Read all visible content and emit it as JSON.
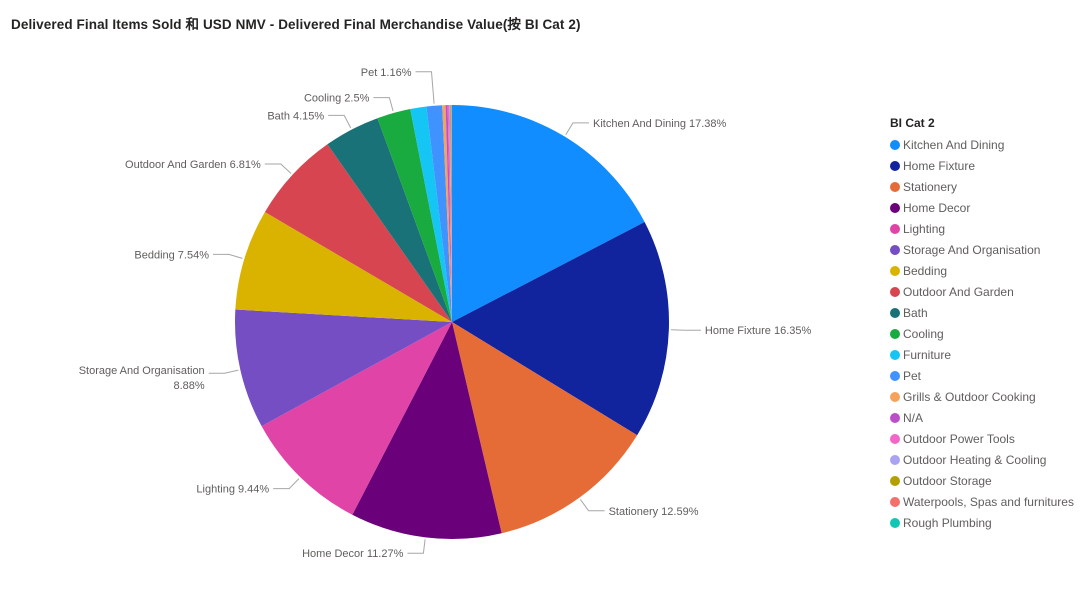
{
  "title": "Delivered Final Items Sold 和 USD NMV - Delivered Final Merchandise Value(按 BI Cat 2)",
  "colors": {
    "background": "#FFFFFF",
    "title_text": "#252423",
    "label_text": "#605E5C",
    "leader_line": "#A6A6A6",
    "legend_title_text": "#252423",
    "legend_item_text": "#605E5C"
  },
  "chart_data": {
    "type": "pie",
    "title": "Delivered Final Items Sold 和 USD NMV - Delivered Final Merchandise Value(按 BI Cat 2)",
    "legend_title": "BI Cat 2",
    "legend_position": "right",
    "label_format": "name percent",
    "start_angle_deg": 0,
    "direction": "clockwise",
    "slices": [
      {
        "name": "Kitchen And Dining",
        "value": 17.38,
        "pct_label": "17.38%",
        "color": "#118DFF"
      },
      {
        "name": "Home Fixture",
        "value": 16.35,
        "pct_label": "16.35%",
        "color": "#12239E"
      },
      {
        "name": "Stationery",
        "value": 12.59,
        "pct_label": "12.59%",
        "color": "#E66C37"
      },
      {
        "name": "Home Decor",
        "value": 11.27,
        "pct_label": "11.27%",
        "color": "#6B007B"
      },
      {
        "name": "Lighting",
        "value": 9.44,
        "pct_label": "9.44%",
        "color": "#E044A7"
      },
      {
        "name": "Storage And Organisation",
        "value": 8.88,
        "pct_label": "8.88%",
        "color": "#744EC2"
      },
      {
        "name": "Bedding",
        "value": 7.54,
        "pct_label": "7.54%",
        "color": "#D9B300"
      },
      {
        "name": "Outdoor And Garden",
        "value": 6.81,
        "pct_label": "6.81%",
        "color": "#D64550"
      },
      {
        "name": "Bath",
        "value": 4.15,
        "pct_label": "4.15%",
        "color": "#197278"
      },
      {
        "name": "Cooling",
        "value": 2.5,
        "pct_label": "2.5%",
        "color": "#1AAB40"
      },
      {
        "name": "Furniture",
        "value": 1.2,
        "pct_label": null,
        "color": "#15C6F4"
      },
      {
        "name": "Pet",
        "value": 1.16,
        "pct_label": "1.16%",
        "color": "#4092FF"
      },
      {
        "name": "Grills & Outdoor Cooking",
        "value": 0.25,
        "pct_label": null,
        "color": "#F5A35C"
      },
      {
        "name": "N/A",
        "value": 0.15,
        "pct_label": null,
        "color": "#BB4FC7"
      },
      {
        "name": "Outdoor Power Tools",
        "value": 0.12,
        "pct_label": null,
        "color": "#F266C8"
      },
      {
        "name": "Outdoor Heating & Cooling",
        "value": 0.08,
        "pct_label": null,
        "color": "#A9A3F0"
      },
      {
        "name": "Outdoor Storage",
        "value": 0.06,
        "pct_label": null,
        "color": "#B3A000"
      },
      {
        "name": "Waterpools, Spas and furnitures",
        "value": 0.04,
        "pct_label": null,
        "color": "#F4706B"
      },
      {
        "name": "Rough Plumbing",
        "value": 0.02,
        "pct_label": null,
        "color": "#10C7B5"
      }
    ]
  }
}
